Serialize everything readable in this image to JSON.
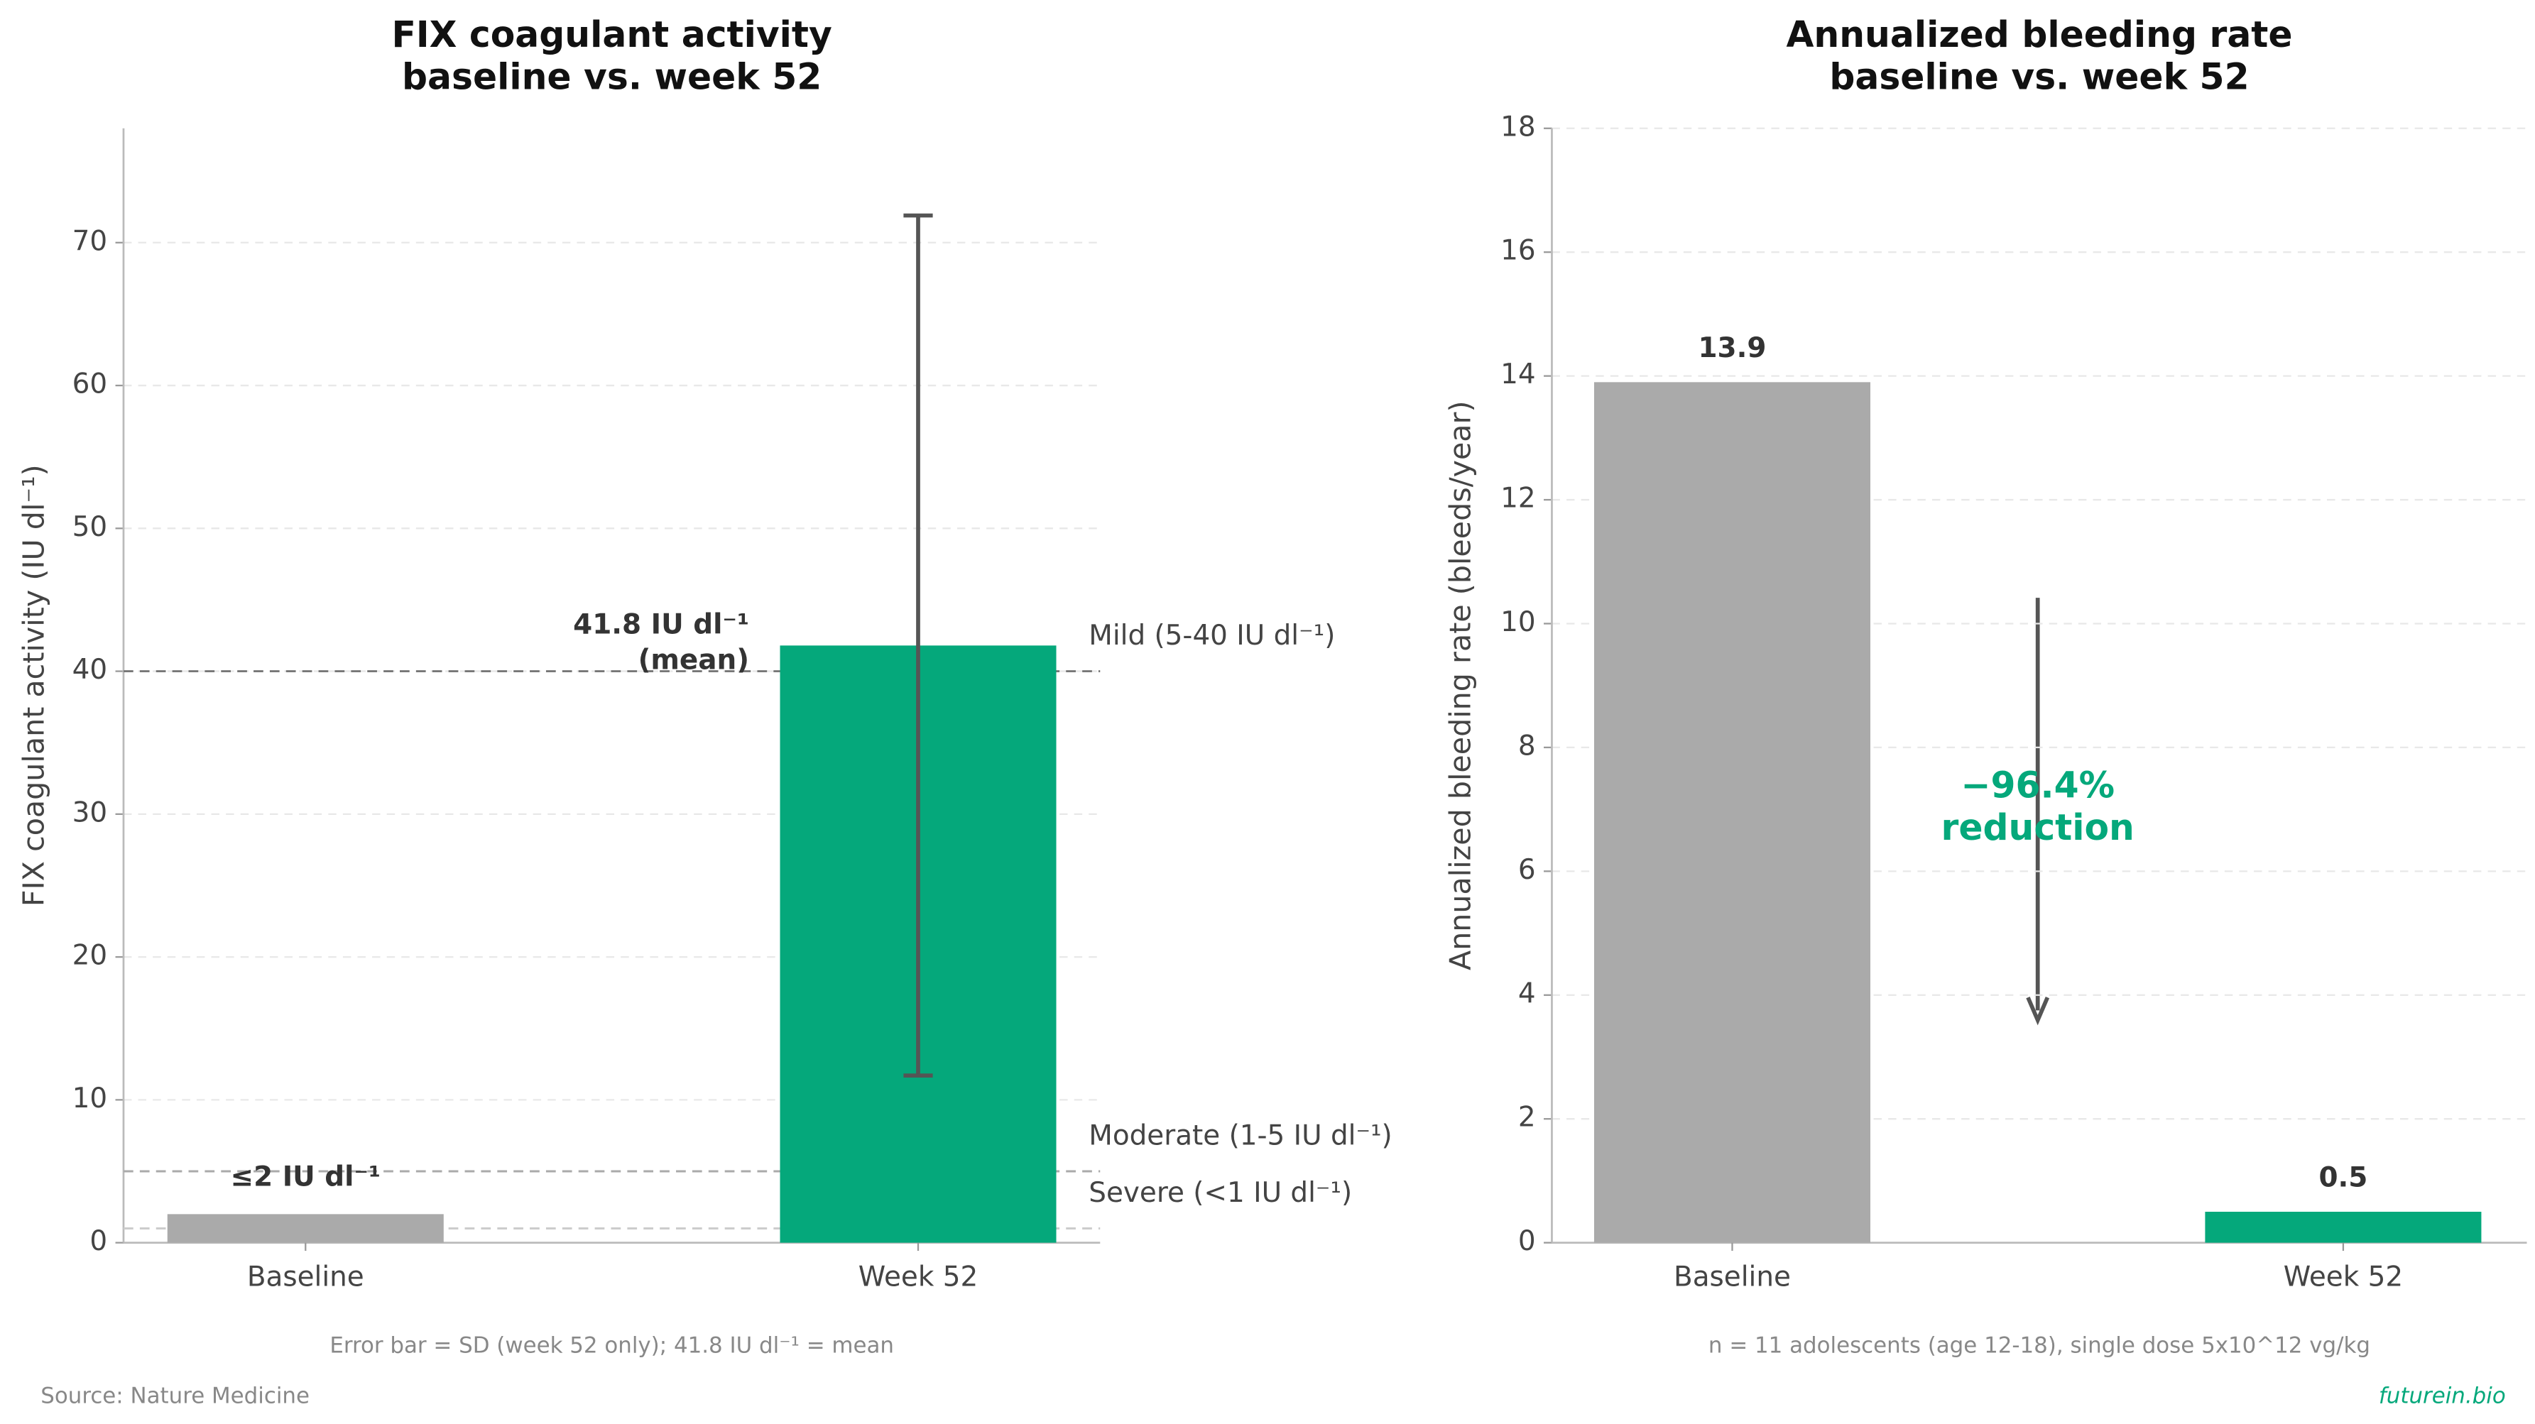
{
  "chart_data": [
    {
      "type": "bar",
      "title": [
        "FIX coagulant activity",
        "baseline vs. week 52"
      ],
      "ylabel": "FIX coagulant activity (IU dl⁻¹)",
      "categories": [
        "Baseline",
        "Week 52"
      ],
      "values": [
        2,
        41.8
      ],
      "errors": [
        null,
        30.1
      ],
      "value_labels": [
        "≤2 IU dl⁻¹",
        [
          "41.8 IU dl⁻¹",
          "(mean)"
        ]
      ],
      "colors": [
        "#aaaaaa",
        "#05a87b"
      ],
      "ylim": [
        0,
        78
      ],
      "yticks": [
        0,
        10,
        20,
        30,
        40,
        50,
        60,
        70
      ],
      "grid": true,
      "reference_lines": [
        {
          "value": 40,
          "label": "Mild (5-40 IU dl⁻¹)",
          "color": "#777777"
        },
        {
          "value": 5,
          "label": "Moderate (1-5 IU dl⁻¹)",
          "color": "#aaaaaa"
        },
        {
          "value": 1,
          "label": "Severe (<1 IU dl⁻¹)",
          "color": "#cccccc"
        }
      ],
      "footnote": "Error bar = SD (week 52 only); 41.8 IU dl⁻¹ = mean"
    },
    {
      "type": "bar",
      "title": [
        "Annualized bleeding rate",
        "baseline vs. week 52"
      ],
      "ylabel": "Annualized bleeding rate (bleeds/year)",
      "categories": [
        "Baseline",
        "Week 52"
      ],
      "values": [
        13.9,
        0.5
      ],
      "colors": [
        "#aaaaaa",
        "#05a87b"
      ],
      "ylim": [
        0,
        18
      ],
      "yticks": [
        0,
        2,
        4,
        6,
        8,
        10,
        12,
        14,
        16,
        18
      ],
      "grid": true,
      "annotation": [
        "−96.4%",
        "reduction"
      ],
      "footnote": "n = 11 adolescents (age 12-18), single dose 5x10^12 vg/kg"
    }
  ],
  "source": "Source: Nature Medicine",
  "brand": "futurein.bio"
}
